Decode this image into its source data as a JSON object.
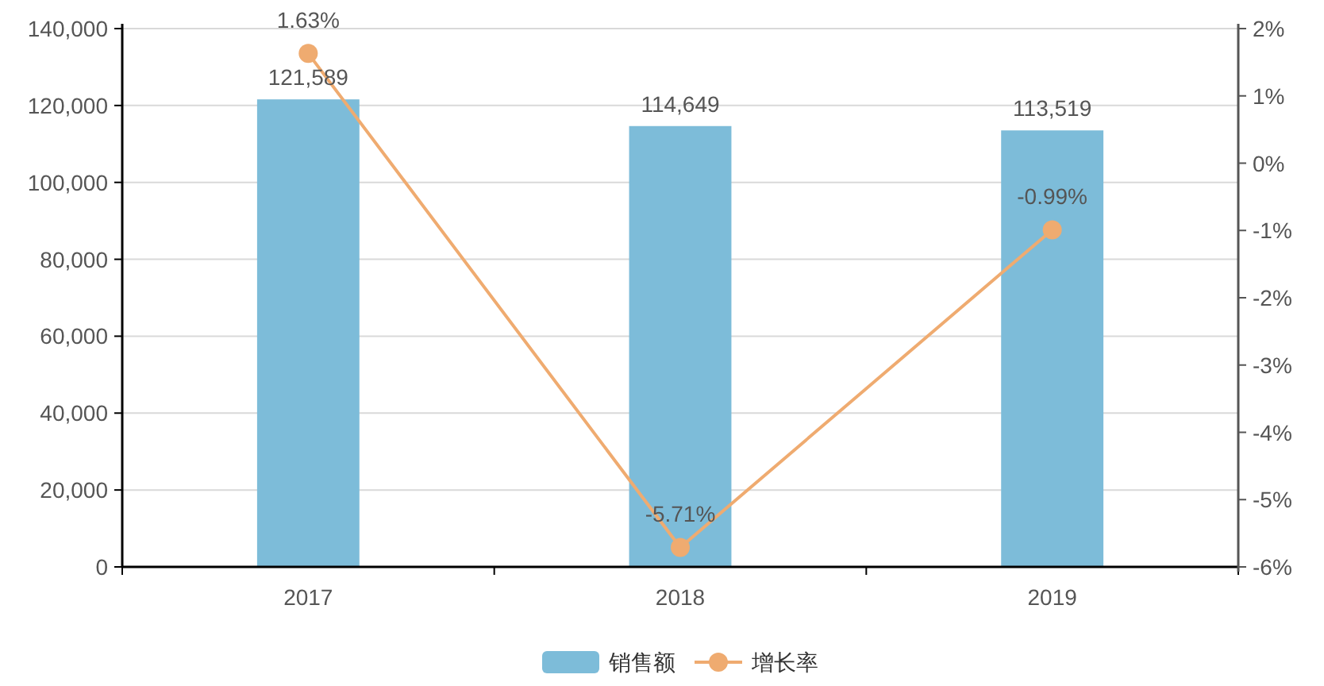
{
  "chart_data": {
    "type": "bar",
    "categories": [
      "2017",
      "2018",
      "2019"
    ],
    "series": [
      {
        "name": "销售额",
        "color": "#7dbcd9",
        "values": [
          121589,
          114649,
          113519
        ],
        "value_labels": [
          "121,589",
          "114,649",
          "113,519"
        ]
      },
      {
        "name": "增长率",
        "type": "line",
        "axis": "y2",
        "color": "#efab70",
        "values": [
          1.63,
          -5.71,
          -0.99
        ],
        "value_labels": [
          "1.63%",
          "-5.71%",
          "-0.99%"
        ]
      }
    ],
    "ylim": [
      0,
      140000
    ],
    "yticks": [
      {
        "value": 0,
        "label": "0"
      },
      {
        "value": 20000,
        "label": "20,000"
      },
      {
        "value": 40000,
        "label": "40,000"
      },
      {
        "value": 60000,
        "label": "60,000"
      },
      {
        "value": 80000,
        "label": "80,000"
      },
      {
        "value": 100000,
        "label": "100,000"
      },
      {
        "value": 120000,
        "label": "120,000"
      },
      {
        "value": 140000,
        "label": "140,000"
      }
    ],
    "y2lim": [
      -6,
      2
    ],
    "y2ticks": [
      {
        "value": -6,
        "label": "-6%"
      },
      {
        "value": -5,
        "label": "-5%"
      },
      {
        "value": -4,
        "label": "-4%"
      },
      {
        "value": -3,
        "label": "-3%"
      },
      {
        "value": -2,
        "label": "-2%"
      },
      {
        "value": -1,
        "label": "-1%"
      },
      {
        "value": 0,
        "label": "0%"
      },
      {
        "value": 1,
        "label": "1%"
      },
      {
        "value": 2,
        "label": "2%"
      }
    ],
    "grid": "y",
    "legend": "bottom",
    "marker": "circle"
  }
}
